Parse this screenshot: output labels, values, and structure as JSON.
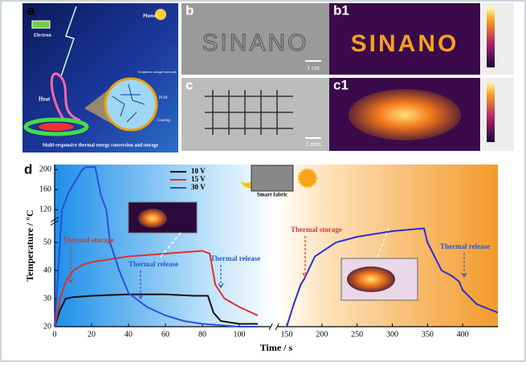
{
  "panels": {
    "a": {
      "label": "a",
      "electron": "Electron",
      "photon": "Photon",
      "heat": "Heat",
      "network": "Graphene aerogel network",
      "pcm": "PCM",
      "coating": "Coating",
      "caption": "Multi-responsive thermal energy conversion and storage"
    },
    "b": {
      "label": "b",
      "text": "SINANO",
      "scale": "1 cm"
    },
    "b1": {
      "label": "b1",
      "text": "SINANO"
    },
    "c": {
      "label": "c",
      "scale": "5 mm"
    },
    "c1": {
      "label": "c1"
    },
    "d": {
      "label": "d",
      "fabric": "Smart fabric"
    }
  },
  "chart_data": {
    "type": "line",
    "x_label": "Time / s",
    "y_label": "Temperature / °C",
    "xlim": [
      0,
      450
    ],
    "xbreak": [
      115,
      142
    ],
    "ylim": [
      20,
      210
    ],
    "ybreak": [
      55,
      115
    ],
    "xticks": [
      0,
      20,
      40,
      60,
      80,
      100,
      150,
      200,
      250,
      300,
      350,
      400
    ],
    "yticks": [
      20,
      30,
      40,
      50,
      120,
      160,
      200
    ],
    "series": [
      {
        "name": "10 V",
        "color": "#111111",
        "x": [
          0,
          3,
          6,
          10,
          20,
          40,
          60,
          75,
          83,
          86,
          90,
          100,
          110
        ],
        "values": [
          20,
          26,
          30,
          30.5,
          31,
          31.5,
          31.5,
          31,
          31,
          25,
          22,
          21,
          21
        ]
      },
      {
        "name": "15 V",
        "color": "#e0302a",
        "x": [
          0,
          3,
          6,
          10,
          15,
          20,
          30,
          40,
          50,
          60,
          70,
          80,
          84,
          87,
          92,
          100,
          110
        ],
        "values": [
          20,
          30,
          36,
          40,
          42,
          43,
          44,
          45,
          45.5,
          46,
          46.5,
          47,
          46,
          35,
          30,
          27,
          24
        ]
      },
      {
        "name": "30 V",
        "color": "#2a4fe0",
        "x": [
          0,
          2,
          4,
          7,
          10,
          15,
          17,
          22,
          25,
          28,
          30,
          35,
          40,
          50,
          60,
          70,
          80,
          100,
          110
        ],
        "values": [
          20,
          40,
          120,
          150,
          170,
          200,
          205,
          205,
          150,
          120,
          50,
          40,
          32,
          27,
          24,
          22,
          21,
          20,
          20
        ]
      },
      {
        "color": "#2a2fd0",
        "x": [
          150,
          160,
          170,
          175,
          190,
          220,
          250,
          300,
          345,
          350,
          370,
          385,
          395,
          400,
          420,
          440,
          450
        ],
        "values": [
          20,
          28,
          35,
          37,
          45,
          50,
          52,
          54,
          55,
          50,
          40,
          38,
          36,
          33,
          28,
          26,
          25
        ]
      }
    ],
    "annotations": [
      {
        "text": "Thermal storage",
        "color": "#d23a2a"
      },
      {
        "text": "Thermal release",
        "color": "#2a55d0"
      },
      {
        "text": "Thermal release",
        "color": "#2a55d0"
      },
      {
        "text": "Thermal storage",
        "color": "#d23a2a"
      },
      {
        "text": "Thermal release",
        "color": "#2a55d0"
      }
    ]
  }
}
